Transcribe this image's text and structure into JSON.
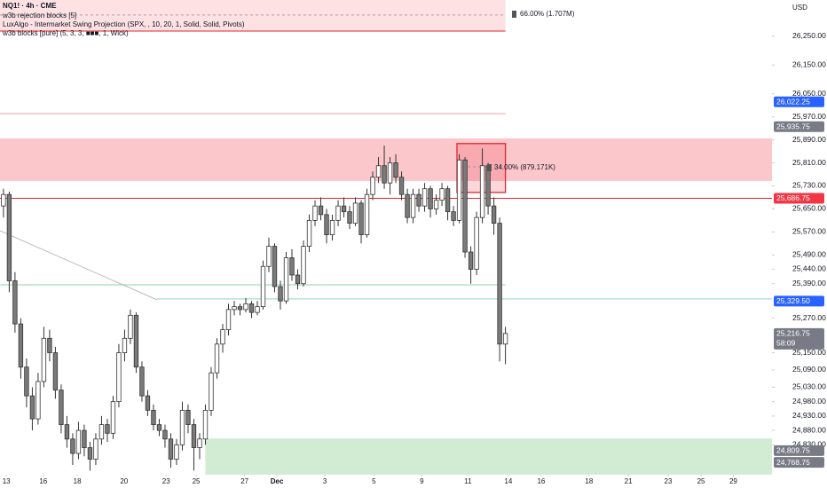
{
  "chart_data": {
    "type": "candlestick",
    "legend": [
      "NQ1! · 4h · CME",
      "w3b rejection blocks [5]",
      "LuxAlgo - Intermarket Swing Projection (SPX, , 10, 20, 1, Solid, Solid, Pivots)",
      "w3b blocks [pure] (5, 3, 3, ■■■, 1, Wick)"
    ],
    "currency": "USD",
    "annotations": [
      "66.00% (1.707M)",
      "34.00% (879.171K)"
    ],
    "up_color": "#ffffff",
    "down_color": "#7a7a7a",
    "wick_color": "#333333",
    "xlim": [
      -0.6,
      133.2
    ],
    "ylim": [
      24726,
      26376
    ],
    "grid": false,
    "xticks": [
      {
        "value": 0.5,
        "label": "13"
      },
      {
        "value": 6.9,
        "label": "16"
      },
      {
        "value": 12.8,
        "label": "18"
      },
      {
        "value": 20.9,
        "label": "20"
      },
      {
        "value": 28.2,
        "label": "23"
      },
      {
        "value": 33.4,
        "label": "25"
      },
      {
        "value": 41.8,
        "label": "27"
      },
      {
        "value": 47.4,
        "label": "Dec"
      },
      {
        "value": 55.7,
        "label": "3"
      },
      {
        "value": 64.2,
        "label": "5"
      },
      {
        "value": 72.5,
        "label": "9"
      },
      {
        "value": 80.5,
        "label": "11"
      },
      {
        "value": 87.5,
        "label": "14"
      },
      {
        "value": 93.2,
        "label": "16"
      },
      {
        "value": 101.5,
        "label": "18"
      },
      {
        "value": 108.3,
        "label": "21"
      },
      {
        "value": 115.2,
        "label": "23"
      },
      {
        "value": 120.9,
        "label": "25"
      },
      {
        "value": 126.5,
        "label": "29"
      }
    ],
    "yticks": [
      {
        "value": 26250,
        "label": "26,250.00"
      },
      {
        "value": 26150,
        "label": "26,150.00"
      },
      {
        "value": 26050,
        "label": "26,050.00"
      },
      {
        "value": 25970,
        "label": "25,970.00"
      },
      {
        "value": 25890,
        "label": "25,890.00"
      },
      {
        "value": 25810,
        "label": "25,810.00"
      },
      {
        "value": 25730,
        "label": "25,730.00"
      },
      {
        "value": 25650,
        "label": "25,650.00"
      },
      {
        "value": 25570,
        "label": "25,570.00"
      },
      {
        "value": 25490,
        "label": "25,490.00"
      },
      {
        "value": 25440,
        "label": "25,440.00"
      },
      {
        "value": 25390,
        "label": "25,390.00"
      },
      {
        "value": 25270,
        "label": "25,270.00"
      },
      {
        "value": 25150,
        "label": "25,150.00"
      },
      {
        "value": 25090,
        "label": "25,090.00"
      },
      {
        "value": 25030,
        "label": "25,030.00"
      },
      {
        "value": 24980,
        "label": "24,980.00"
      },
      {
        "value": 24930,
        "label": "24,930.00"
      },
      {
        "value": 24880,
        "label": "24,880.00"
      },
      {
        "value": 24830,
        "label": "24,830.00"
      }
    ],
    "price_labels": [
      {
        "value": 26022.25,
        "label": "26,022.25",
        "color": "#2962ff"
      },
      {
        "value": 25935.75,
        "label": "25,935.75",
        "color": "#787b86"
      },
      {
        "value": 25686.75,
        "label": "25,686.75",
        "color": "#f23645"
      },
      {
        "value": 25329.5,
        "label": "25,329.50",
        "color": "#2962ff"
      },
      {
        "value": 25216.75,
        "label": "25,216.75",
        "sub": "58:09",
        "color": "#787b86"
      },
      {
        "value": 24809.75,
        "label": "24,809.75",
        "color": "#787b86"
      },
      {
        "value": 24768.75,
        "label": "24,768.75",
        "color": "#787b86"
      }
    ],
    "zones": [
      {
        "low": 26268,
        "high": 26376,
        "x_from": -0.6,
        "x_to": 87,
        "color": "rgba(242,54,69,0.15)"
      },
      {
        "low": 25747,
        "high": 25895,
        "x_from": -0.6,
        "x_to": 133.2,
        "color": "rgba(242,54,69,0.28)"
      },
      {
        "low": 24726,
        "high": 24852,
        "x_from": 35,
        "x_to": 133.2,
        "color": "rgba(76,175,80,0.25)"
      },
      {
        "low": 25707,
        "high": 25877,
        "x_from": 78.6,
        "x_to": 87,
        "color": "rgba(242,54,69,0.2)",
        "border": "#e0262f"
      }
    ],
    "lines": [
      {
        "y1": 26324,
        "y2": 26324,
        "x_from": -0.6,
        "x_to": 87,
        "color": "#b0a0a0",
        "dash": true
      },
      {
        "y1": 26268,
        "y2": 26268,
        "x_from": -0.6,
        "x_to": 87,
        "color": "#e0262f"
      },
      {
        "y1": 25981,
        "y2": 25981,
        "x_from": -0.6,
        "x_to": 87,
        "color": "#f29aa0"
      },
      {
        "y1": 25796,
        "y2": 25796,
        "x_from": 78.6,
        "x_to": 87,
        "color": "#999999",
        "dash": true
      },
      {
        "y1": 25686.75,
        "y2": 25686.75,
        "x_from": -0.6,
        "x_to": 133.2,
        "color": "#e0262f"
      },
      {
        "y1": 25574,
        "y2": 25334,
        "x_from": -0.6,
        "x_to": 26.6,
        "color": "#bbbbbb"
      },
      {
        "y1": 25386,
        "y2": 25386,
        "x_from": -0.6,
        "x_to": 87,
        "color": "#8fd3a8"
      },
      {
        "y1": 25337,
        "y2": 25337,
        "x_from": 26.6,
        "x_to": 133.2,
        "color": "#8fd3c8"
      }
    ],
    "candles": [
      [
        25660,
        25720,
        25620,
        25700
      ],
      [
        25700,
        25710,
        25360,
        25400
      ],
      [
        25400,
        25430,
        25220,
        25250
      ],
      [
        25250,
        25270,
        25060,
        25100
      ],
      [
        25100,
        25130,
        24960,
        25000
      ],
      [
        25000,
        25030,
        24880,
        24920
      ],
      [
        24920,
        25080,
        24900,
        25050
      ],
      [
        25050,
        25240,
        25030,
        25200
      ],
      [
        25200,
        25230,
        25120,
        25150
      ],
      [
        25150,
        25170,
        24990,
        25020
      ],
      [
        25020,
        25040,
        24870,
        24900
      ],
      [
        24900,
        24930,
        24820,
        24850
      ],
      [
        24850,
        24870,
        24760,
        24800
      ],
      [
        24800,
        24910,
        24780,
        24880
      ],
      [
        24880,
        24900,
        24790,
        24820
      ],
      [
        24820,
        24840,
        24740,
        24780
      ],
      [
        24780,
        24870,
        24760,
        24850
      ],
      [
        24850,
        24930,
        24830,
        24900
      ],
      [
        24900,
        24920,
        24840,
        24870
      ],
      [
        24870,
        25000,
        24850,
        24980
      ],
      [
        24980,
        25180,
        24960,
        25150
      ],
      [
        25150,
        25230,
        25120,
        25200
      ],
      [
        25200,
        25300,
        25180,
        25280
      ],
      [
        25280,
        25290,
        25080,
        25100
      ],
      [
        25100,
        25120,
        24980,
        25000
      ],
      [
        25000,
        25020,
        24930,
        24950
      ],
      [
        24950,
        24970,
        24880,
        24900
      ],
      [
        24900,
        24920,
        24860,
        24880
      ],
      [
        24880,
        24900,
        24820,
        24850
      ],
      [
        24850,
        24870,
        24750,
        24780
      ],
      [
        24780,
        24850,
        24760,
        24830
      ],
      [
        24830,
        24980,
        24810,
        24950
      ],
      [
        24950,
        24970,
        24870,
        24900
      ],
      [
        24900,
        24920,
        24740,
        24820
      ],
      [
        24820,
        24870,
        24780,
        24850
      ],
      [
        24850,
        24970,
        24830,
        24950
      ],
      [
        24950,
        25100,
        24930,
        25080
      ],
      [
        25080,
        25200,
        25060,
        25180
      ],
      [
        25180,
        25250,
        25150,
        25230
      ],
      [
        25230,
        25320,
        25210,
        25300
      ],
      [
        25300,
        25330,
        25280,
        25310
      ],
      [
        25310,
        25320,
        25280,
        25300
      ],
      [
        25300,
        25340,
        25290,
        25320
      ],
      [
        25320,
        25330,
        25270,
        25290
      ],
      [
        25290,
        25330,
        25280,
        25310
      ],
      [
        25310,
        25470,
        25300,
        25450
      ],
      [
        25450,
        25550,
        25430,
        25520
      ],
      [
        25520,
        25530,
        25360,
        25380
      ],
      [
        25380,
        25400,
        25300,
        25330
      ],
      [
        25330,
        25500,
        25320,
        25480
      ],
      [
        25480,
        25510,
        25400,
        25420
      ],
      [
        25420,
        25440,
        25370,
        25390
      ],
      [
        25390,
        25540,
        25380,
        25520
      ],
      [
        25520,
        25630,
        25500,
        25610
      ],
      [
        25610,
        25680,
        25590,
        25660
      ],
      [
        25660,
        25690,
        25610,
        25630
      ],
      [
        25630,
        25650,
        25530,
        25560
      ],
      [
        25560,
        25630,
        25540,
        25610
      ],
      [
        25610,
        25680,
        25590,
        25660
      ],
      [
        25660,
        25690,
        25620,
        25640
      ],
      [
        25640,
        25660,
        25580,
        25600
      ],
      [
        25600,
        25690,
        25590,
        25670
      ],
      [
        25670,
        25680,
        25530,
        25560
      ],
      [
        25560,
        25720,
        25550,
        25700
      ],
      [
        25700,
        25780,
        25680,
        25760
      ],
      [
        25760,
        25830,
        25740,
        25800
      ],
      [
        25800,
        25870,
        25720,
        25740
      ],
      [
        25740,
        25830,
        25700,
        25810
      ],
      [
        25810,
        25840,
        25740,
        25760
      ],
      [
        25760,
        25780,
        25680,
        25700
      ],
      [
        25700,
        25720,
        25600,
        25620
      ],
      [
        25620,
        25720,
        25600,
        25700
      ],
      [
        25700,
        25720,
        25640,
        25660
      ],
      [
        25660,
        25740,
        25640,
        25720
      ],
      [
        25720,
        25730,
        25620,
        25650
      ],
      [
        25650,
        25700,
        25630,
        25680
      ],
      [
        25680,
        25740,
        25660,
        25720
      ],
      [
        25720,
        25730,
        25610,
        25640
      ],
      [
        25640,
        25660,
        25590,
        25610
      ],
      [
        25610,
        25840,
        25600,
        25820
      ],
      [
        25820,
        25830,
        25480,
        25500
      ],
      [
        25500,
        25520,
        25390,
        25440
      ],
      [
        25440,
        25640,
        25420,
        25620
      ],
      [
        25620,
        25860,
        25600,
        25800
      ],
      [
        25800,
        25810,
        25630,
        25660
      ],
      [
        25660,
        25690,
        25560,
        25600
      ],
      [
        25600,
        25620,
        25120,
        25180
      ],
      [
        25180,
        25240,
        25110,
        25216.75
      ]
    ]
  }
}
